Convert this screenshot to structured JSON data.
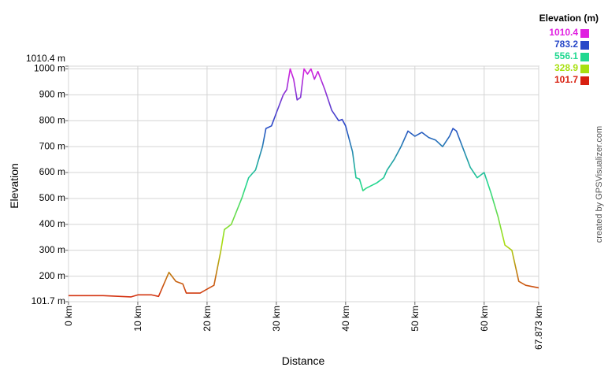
{
  "chart_data": {
    "type": "line",
    "xlabel": "Distance",
    "ylabel": "Elevation",
    "watermark": "created by GPSVisualizer.com",
    "legend": {
      "title": "Elevation (m)",
      "items": [
        {
          "value": 1010.4,
          "color": "#e020e0"
        },
        {
          "value": 783.2,
          "color": "#2848c8"
        },
        {
          "value": 556.1,
          "color": "#20d890"
        },
        {
          "value": 328.9,
          "color": "#a8e010"
        },
        {
          "value": 101.7,
          "color": "#d82010"
        }
      ]
    },
    "xlim": [
      0,
      67.873
    ],
    "xticks": [
      {
        "value": 0,
        "label": "0 km"
      },
      {
        "value": 10,
        "label": "10 km"
      },
      {
        "value": 20,
        "label": "20 km"
      },
      {
        "value": 30,
        "label": "30 km"
      },
      {
        "value": 40,
        "label": "40 km"
      },
      {
        "value": 50,
        "label": "50 km"
      },
      {
        "value": 60,
        "label": "60 km"
      },
      {
        "value": 67.873,
        "label": "67.873 km"
      }
    ],
    "ylim": [
      101.7,
      1010.4
    ],
    "yticks": [
      {
        "value": 101.7,
        "label": "101.7 m"
      },
      {
        "value": 200,
        "label": "200 m"
      },
      {
        "value": 300,
        "label": "300 m"
      },
      {
        "value": 400,
        "label": "400 m"
      },
      {
        "value": 500,
        "label": "500 m"
      },
      {
        "value": 600,
        "label": "600 m"
      },
      {
        "value": 700,
        "label": "700 m"
      },
      {
        "value": 800,
        "label": "800 m"
      },
      {
        "value": 900,
        "label": "900 m"
      },
      {
        "value": 1000,
        "label": "1000 m"
      },
      {
        "value": 1010.4,
        "label": "1010.4 m"
      }
    ],
    "grid": true,
    "series": [
      {
        "name": "Elevation",
        "x": [
          0,
          5,
          9,
          10,
          12,
          13,
          14.5,
          15.5,
          16.5,
          17,
          19,
          20,
          21,
          22,
          22.5,
          23.5,
          25,
          26,
          27,
          28,
          28.5,
          29.3,
          30,
          31,
          31.5,
          32,
          32.5,
          33,
          33.5,
          34,
          34.5,
          35,
          35.5,
          36,
          37,
          38,
          39,
          39.5,
          40,
          41,
          41.5,
          42,
          42.5,
          43,
          44.5,
          45.5,
          46,
          47,
          48,
          49,
          50,
          51,
          52,
          53,
          54,
          55,
          55.5,
          56,
          57,
          58,
          59,
          60,
          61,
          62,
          63,
          64,
          65,
          66,
          67.873
        ],
        "values": [
          125,
          125,
          120,
          128,
          128,
          122,
          215,
          180,
          170,
          135,
          135,
          150,
          165,
          300,
          380,
          400,
          500,
          580,
          610,
          700,
          770,
          780,
          830,
          900,
          920,
          1000,
          960,
          880,
          890,
          1000,
          980,
          1000,
          960,
          990,
          920,
          840,
          800,
          805,
          780,
          680,
          580,
          575,
          530,
          540,
          560,
          580,
          610,
          650,
          700,
          760,
          740,
          755,
          735,
          725,
          700,
          740,
          770,
          760,
          690,
          620,
          580,
          600,
          520,
          430,
          320,
          300,
          180,
          165,
          155
        ]
      }
    ]
  }
}
